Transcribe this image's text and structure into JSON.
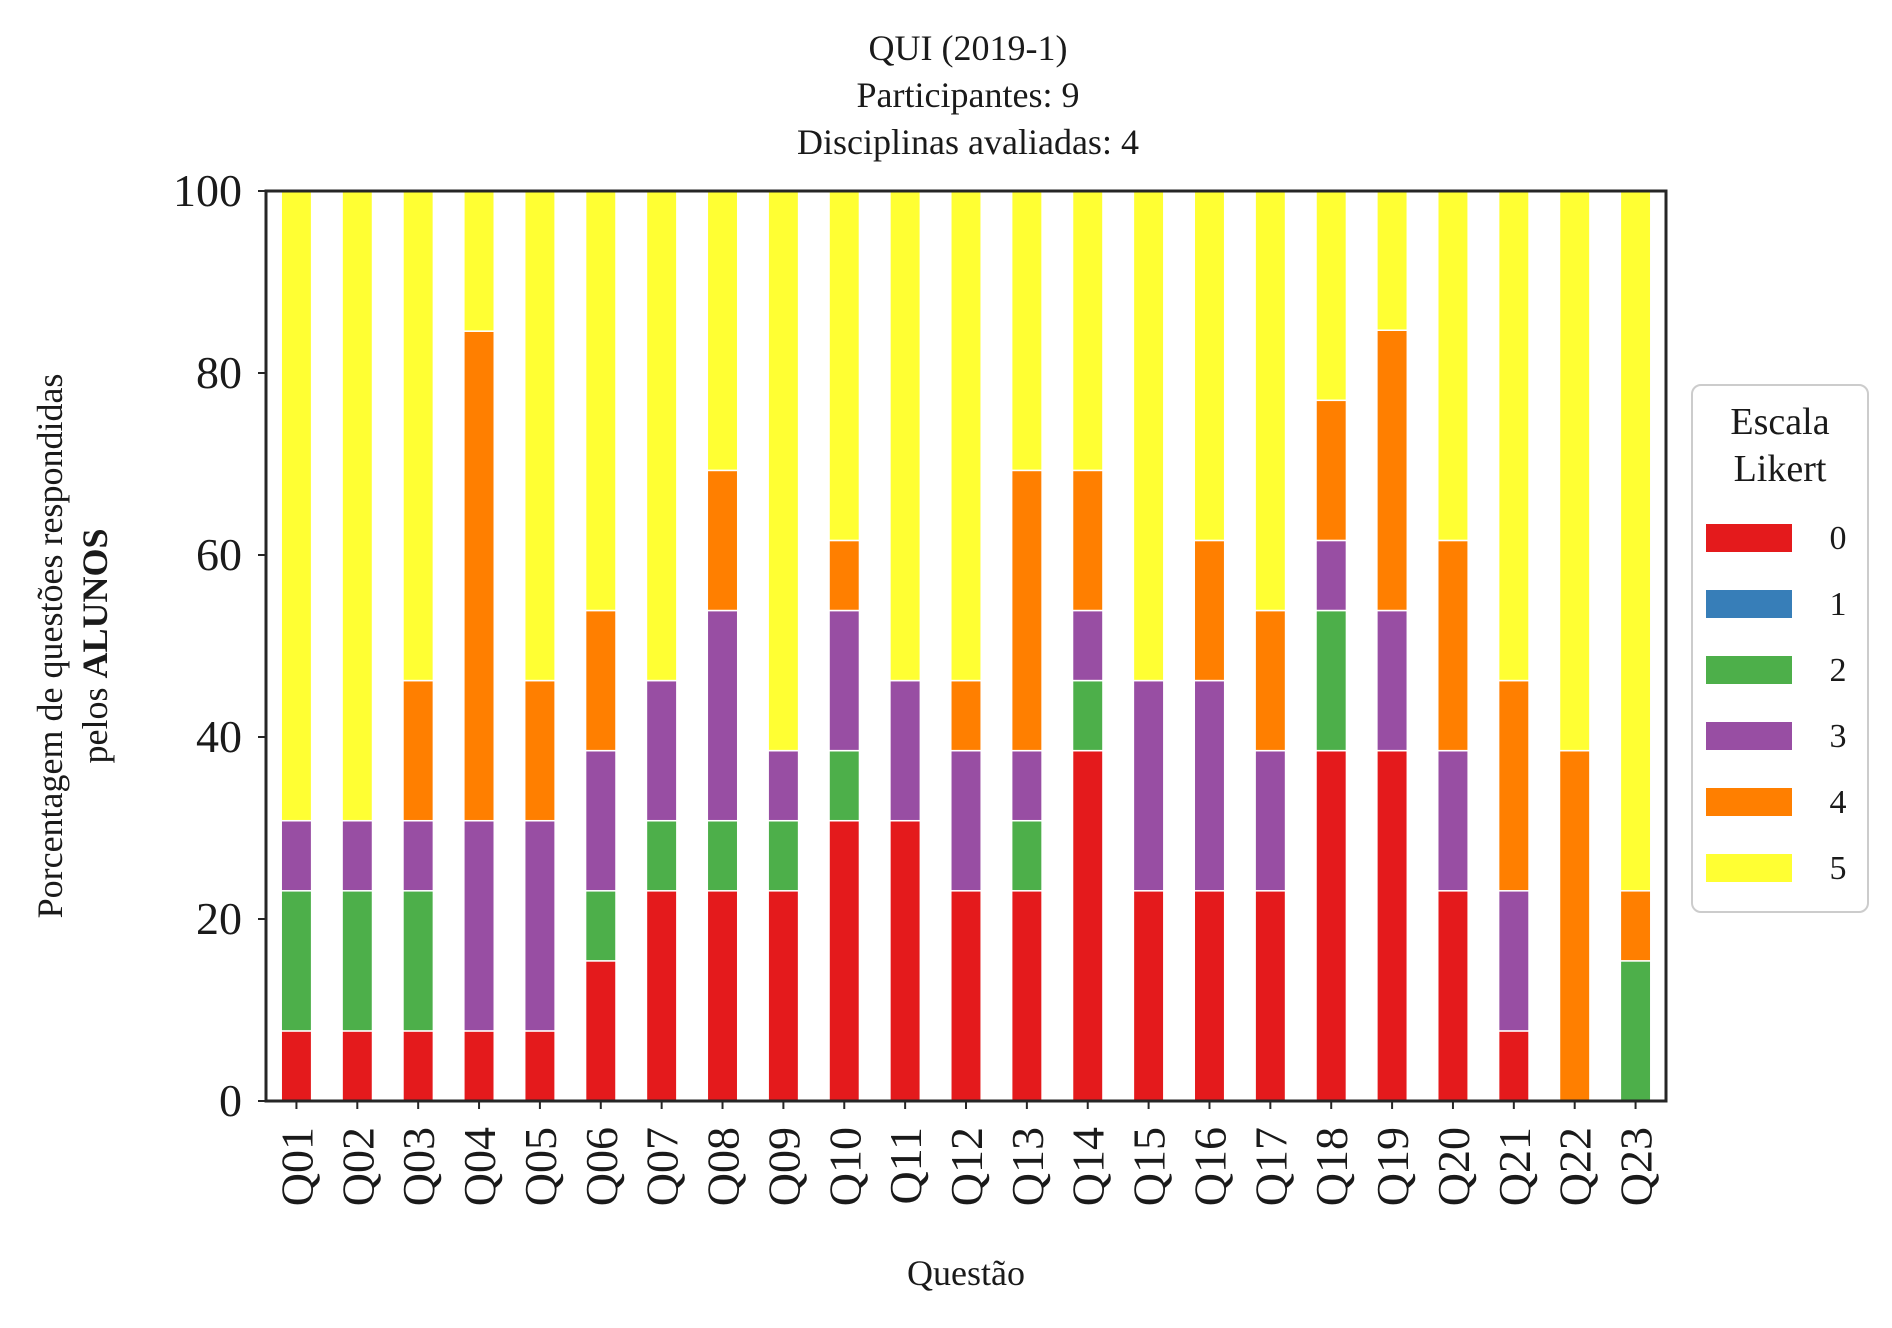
{
  "chart_data": {
    "type": "bar",
    "stacked": true,
    "title_lines": [
      "QUI (2019-1)",
      "Participantes: 9",
      "Disciplinas avaliadas: 4"
    ],
    "xlabel": "Questão",
    "ylabel_line1": "Porcentagem de questões respondidas",
    "ylabel_line2_prefix": "pelos ",
    "ylabel_line2_bold": "ALUNOS",
    "ylim": [
      0,
      100
    ],
    "yticks": [
      "0",
      "20",
      "40",
      "60",
      "80",
      "100"
    ],
    "grid": false,
    "legend_title_lines": [
      "Escala",
      "Likert"
    ],
    "legend_position": "right-center",
    "categories": [
      "Q01",
      "Q02",
      "Q03",
      "Q04",
      "Q05",
      "Q06",
      "Q07",
      "Q08",
      "Q09",
      "Q10",
      "Q11",
      "Q12",
      "Q13",
      "Q14",
      "Q15",
      "Q16",
      "Q17",
      "Q18",
      "Q19",
      "Q20",
      "Q21",
      "Q22",
      "Q23"
    ],
    "series": [
      {
        "name": "0",
        "color": "#e41a1c",
        "values": [
          7.7,
          7.7,
          7.7,
          7.7,
          7.7,
          15.4,
          23.1,
          23.1,
          23.1,
          30.8,
          30.8,
          23.1,
          23.1,
          38.5,
          23.1,
          23.1,
          23.1,
          38.5,
          38.5,
          23.1,
          7.7,
          0,
          0
        ]
      },
      {
        "name": "1",
        "color": "#377eb8",
        "values": [
          0,
          0,
          0,
          0,
          0,
          0,
          0,
          0,
          0,
          0,
          0,
          0,
          0,
          0,
          0,
          0,
          0,
          0,
          0,
          0,
          0,
          0,
          0
        ]
      },
      {
        "name": "2",
        "color": "#4daf4a",
        "values": [
          15.4,
          15.4,
          15.4,
          0,
          0,
          7.7,
          7.7,
          7.7,
          7.7,
          7.7,
          0,
          0,
          7.7,
          7.7,
          0,
          0,
          0,
          15.4,
          0,
          0,
          0,
          0,
          15.4
        ]
      },
      {
        "name": "3",
        "color": "#984ea3",
        "values": [
          7.7,
          7.7,
          7.7,
          23.1,
          23.1,
          15.4,
          15.4,
          23.1,
          7.7,
          15.4,
          15.4,
          15.4,
          7.7,
          7.7,
          23.1,
          23.1,
          15.4,
          7.7,
          15.4,
          15.4,
          15.4,
          0,
          0
        ]
      },
      {
        "name": "4",
        "color": "#ff7f00",
        "values": [
          0,
          0,
          15.4,
          53.8,
          15.4,
          15.4,
          0,
          15.4,
          0,
          7.7,
          0,
          7.7,
          30.8,
          15.4,
          0,
          15.4,
          15.4,
          15.4,
          30.8,
          23.1,
          23.1,
          38.5,
          7.7
        ]
      },
      {
        "name": "5",
        "color": "#ffff33",
        "values": [
          69.2,
          69.2,
          53.8,
          15.4,
          53.8,
          46.2,
          53.8,
          30.8,
          61.5,
          38.5,
          53.8,
          53.8,
          30.8,
          30.8,
          53.8,
          38.5,
          46.2,
          23.1,
          15.4,
          38.5,
          53.8,
          61.5,
          76.9
        ]
      }
    ]
  }
}
